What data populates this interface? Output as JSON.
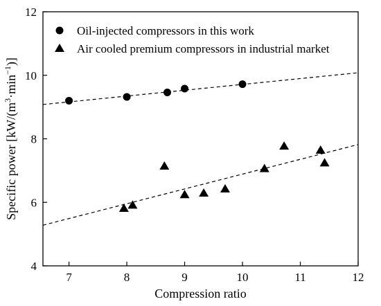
{
  "chart_data": {
    "type": "scatter",
    "title": "",
    "xlabel": "Compression ratio",
    "ylabel_main": "Specific power [kW/(m",
    "ylabel_sup1": "3",
    "ylabel_mid": "·min",
    "ylabel_sup2": "−1",
    "ylabel_end": ")]",
    "xlim": [
      6.55,
      12.0
    ],
    "ylim": [
      4,
      12
    ],
    "x_ticks": [
      "7",
      "8",
      "9",
      "10",
      "11",
      "12"
    ],
    "y_ticks": [
      "4",
      "6",
      "8",
      "10",
      "12"
    ],
    "grid": false,
    "legend_position": "top-left",
    "series": [
      {
        "name": "Oil-injected compressors in this work",
        "marker": "circle",
        "points": [
          {
            "x": 7.0,
            "y": 9.2
          },
          {
            "x": 8.0,
            "y": 9.32
          },
          {
            "x": 8.7,
            "y": 9.46
          },
          {
            "x": 9.0,
            "y": 9.58
          },
          {
            "x": 10.0,
            "y": 9.72
          }
        ],
        "trendline": {
          "x": [
            6.55,
            12.0
          ],
          "y": [
            9.08,
            10.08
          ]
        }
      },
      {
        "name": "Air cooled premium compressors in industrial market",
        "marker": "triangle",
        "points": [
          {
            "x": 7.95,
            "y": 5.82
          },
          {
            "x": 8.1,
            "y": 5.92
          },
          {
            "x": 8.65,
            "y": 7.15
          },
          {
            "x": 9.0,
            "y": 6.25
          },
          {
            "x": 9.33,
            "y": 6.3
          },
          {
            "x": 9.7,
            "y": 6.43
          },
          {
            "x": 10.38,
            "y": 7.07
          },
          {
            "x": 10.72,
            "y": 7.78
          },
          {
            "x": 11.35,
            "y": 7.65
          },
          {
            "x": 11.42,
            "y": 7.25
          }
        ],
        "trendline": {
          "x": [
            6.55,
            12.0
          ],
          "y": [
            5.28,
            7.82
          ]
        }
      }
    ]
  }
}
